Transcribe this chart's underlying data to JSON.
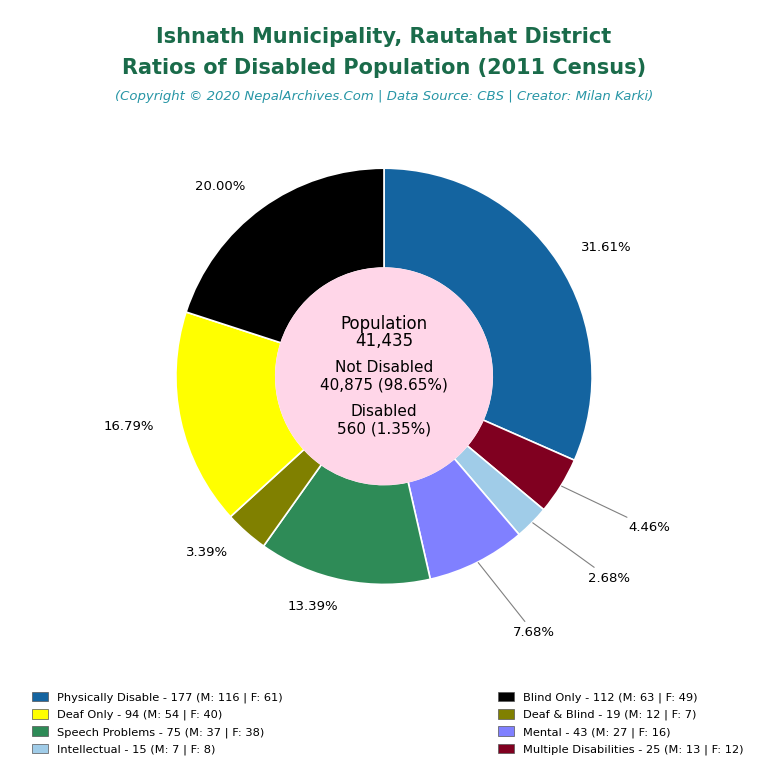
{
  "title_line1": "Ishnath Municipality, Rautahat District",
  "title_line2": "Ratios of Disabled Population (2011 Census)",
  "subtitle": "(Copyright © 2020 NepalArchives.Com | Data Source: CBS | Creator: Milan Karki)",
  "title_color": "#1a6b4a",
  "subtitle_color": "#2896a6",
  "center_bg_color": "#ffd6e8",
  "slices": [
    {
      "label": "Physically Disable - 177 (M: 116 | F: 61)",
      "value": 177,
      "pct": "31.61%",
      "color": "#1464a0"
    },
    {
      "label": "Multiple Disabilities - 25 (M: 13 | F: 12)",
      "value": 25,
      "pct": "4.46%",
      "color": "#800020"
    },
    {
      "label": "Intellectual - 15 (M: 7 | F: 8)",
      "value": 15,
      "pct": "2.68%",
      "color": "#a0cce8"
    },
    {
      "label": "Mental - 43 (M: 27 | F: 16)",
      "value": 43,
      "pct": "7.68%",
      "color": "#8080ff"
    },
    {
      "label": "Speech Problems - 75 (M: 37 | F: 38)",
      "value": 75,
      "pct": "13.39%",
      "color": "#2e8b57"
    },
    {
      "label": "Deaf & Blind - 19 (M: 12 | F: 7)",
      "value": 19,
      "pct": "3.39%",
      "color": "#808000"
    },
    {
      "label": "Deaf Only - 94 (M: 54 | F: 40)",
      "value": 94,
      "pct": "16.79%",
      "color": "#ffff00"
    },
    {
      "label": "Blind Only - 112 (M: 63 | F: 49)",
      "value": 112,
      "pct": "20.00%",
      "color": "#000000"
    }
  ],
  "legend_labels_col1": [
    "Physically Disable - 177 (M: 116 | F: 61)",
    "Deaf Only - 94 (M: 54 | F: 40)",
    "Speech Problems - 75 (M: 37 | F: 38)",
    "Intellectual - 15 (M: 7 | F: 8)"
  ],
  "legend_labels_col2": [
    "Blind Only - 112 (M: 63 | F: 49)",
    "Deaf & Blind - 19 (M: 12 | F: 7)",
    "Mental - 43 (M: 27 | F: 16)",
    "Multiple Disabilities - 25 (M: 13 | F: 12)"
  ],
  "legend_colors_col1": [
    "#1464a0",
    "#ffff00",
    "#2e8b57",
    "#a0cce8"
  ],
  "legend_colors_col2": [
    "#000000",
    "#808000",
    "#8080ff",
    "#800020"
  ],
  "bg_color": "#ffffff"
}
